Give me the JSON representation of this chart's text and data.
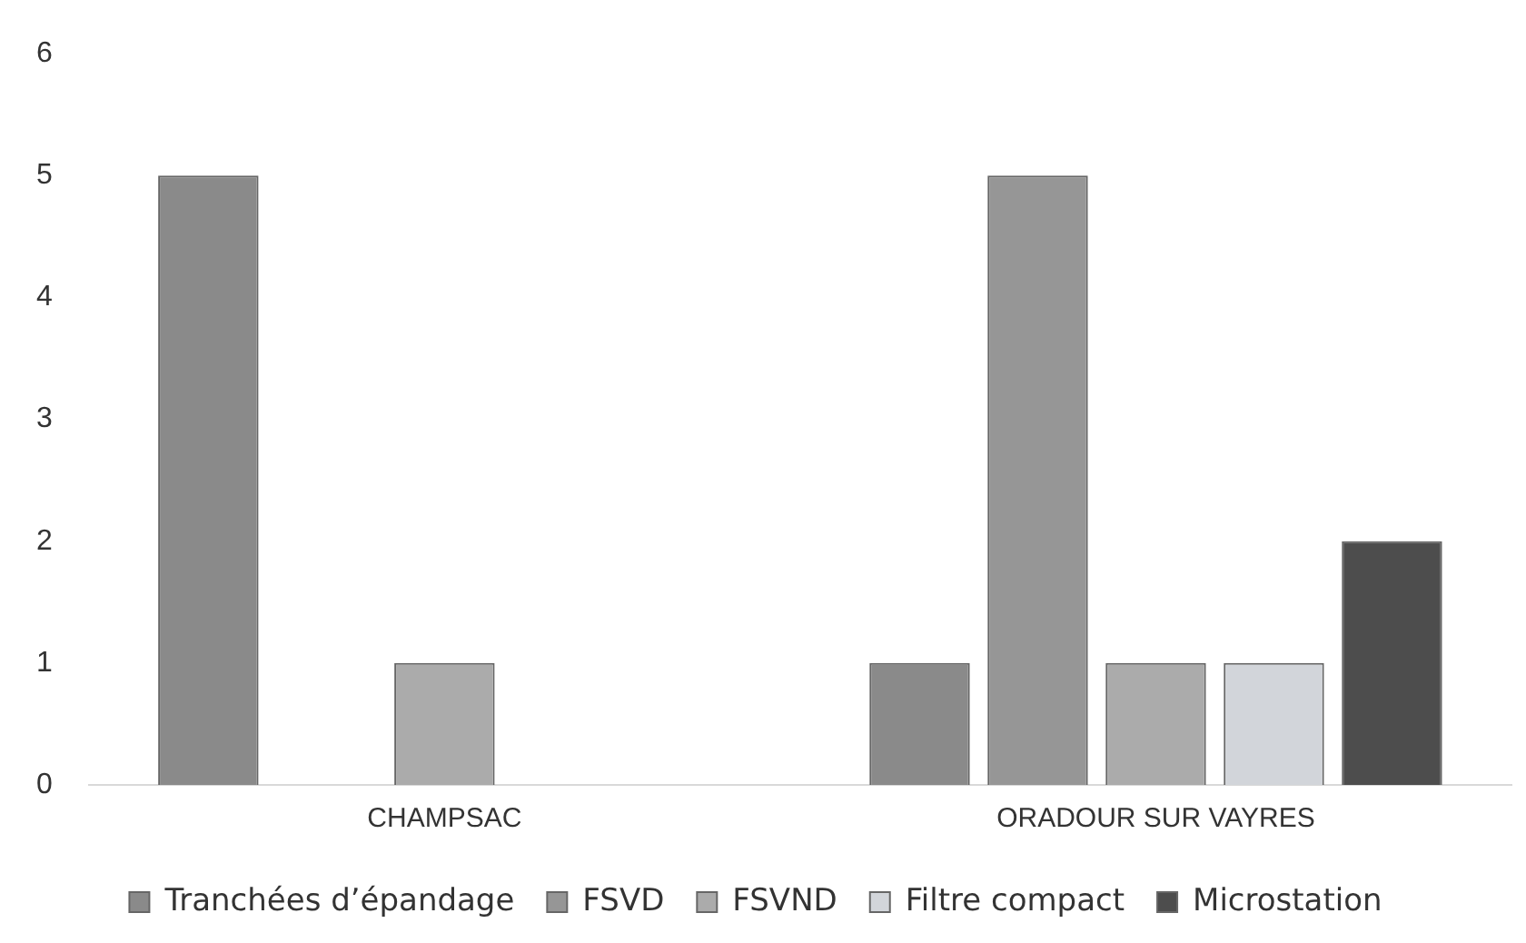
{
  "chart_data": {
    "type": "bar",
    "categories": [
      "CHAMPSAC",
      "ORADOUR SUR VAYRES"
    ],
    "series": [
      {
        "name": "Tranchées d’épandage",
        "color": "#8a8a8a",
        "values": [
          5,
          1
        ]
      },
      {
        "name": "FSVD",
        "color": "#969696",
        "values": [
          null,
          5
        ]
      },
      {
        "name": "FSVND",
        "color": "#ababab",
        "values": [
          1,
          1
        ]
      },
      {
        "name": "Filtre compact",
        "color": "#d2d5da",
        "values": [
          null,
          1
        ]
      },
      {
        "name": "Microstation",
        "color": "#4d4d4d",
        "values": [
          null,
          2
        ]
      }
    ],
    "ylim": [
      0,
      6
    ],
    "yticks": [
      0,
      1,
      2,
      3,
      4,
      5,
      6
    ],
    "grid": false,
    "legend": "bottom"
  }
}
